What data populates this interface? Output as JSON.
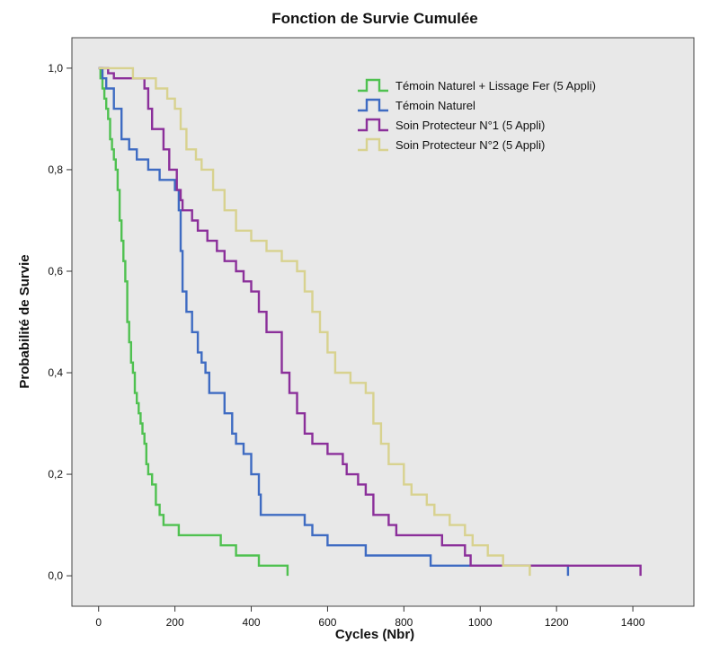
{
  "chart_data": {
    "type": "line",
    "step": true,
    "title": "Fonction de Survie Cumulée",
    "xlabel": "Cycles (Nbr)",
    "ylabel": "Probabilité de Survie",
    "xlim": [
      -70,
      1560
    ],
    "ylim": [
      -0.06,
      1.06
    ],
    "xticks": [
      0,
      200,
      400,
      600,
      800,
      1000,
      1200,
      1400
    ],
    "xtick_labels": [
      "0",
      "200",
      "400",
      "600",
      "800",
      "1000",
      "1200",
      "1400"
    ],
    "yticks": [
      0.0,
      0.2,
      0.4,
      0.6,
      0.8,
      1.0
    ],
    "ytick_labels": [
      "0,0",
      "0,2",
      "0,4",
      "0,6",
      "0,8",
      "1,0"
    ],
    "grid": false,
    "legend_position": "top-right",
    "background": "#e8e8e8",
    "series": [
      {
        "name": "Témoin Naturel + Lissage Fer (5 Appli)",
        "color": "#4fc150",
        "x": [
          0,
          5,
          10,
          15,
          20,
          25,
          30,
          35,
          40,
          45,
          50,
          55,
          60,
          65,
          70,
          75,
          80,
          85,
          90,
          95,
          100,
          105,
          110,
          115,
          120,
          125,
          130,
          140,
          150,
          160,
          170,
          190,
          210,
          320,
          360,
          420,
          470,
          495
        ],
        "y": [
          1.0,
          0.98,
          0.96,
          0.94,
          0.92,
          0.9,
          0.86,
          0.84,
          0.82,
          0.8,
          0.76,
          0.7,
          0.66,
          0.62,
          0.58,
          0.5,
          0.46,
          0.42,
          0.4,
          0.36,
          0.34,
          0.32,
          0.3,
          0.28,
          0.26,
          0.22,
          0.2,
          0.18,
          0.14,
          0.12,
          0.1,
          0.1,
          0.08,
          0.06,
          0.04,
          0.02,
          0.02,
          0.0
        ]
      },
      {
        "name": "Témoin Naturel",
        "color": "#3e6bc2",
        "x": [
          0,
          10,
          20,
          40,
          60,
          80,
          100,
          130,
          160,
          200,
          210,
          215,
          220,
          230,
          245,
          260,
          270,
          280,
          290,
          330,
          350,
          360,
          380,
          400,
          420,
          425,
          430,
          440,
          460,
          540,
          560,
          600,
          700,
          870,
          960,
          1230
        ],
        "y": [
          1.0,
          0.98,
          0.96,
          0.92,
          0.86,
          0.84,
          0.82,
          0.8,
          0.78,
          0.76,
          0.72,
          0.64,
          0.56,
          0.52,
          0.48,
          0.44,
          0.42,
          0.4,
          0.36,
          0.32,
          0.28,
          0.26,
          0.24,
          0.2,
          0.16,
          0.12,
          0.12,
          0.12,
          0.12,
          0.1,
          0.08,
          0.06,
          0.04,
          0.02,
          0.02,
          0.0
        ]
      },
      {
        "name": "Soin Protecteur N°1 (5 Appli)",
        "color": "#8b2f9a",
        "x": [
          0,
          25,
          40,
          110,
          120,
          130,
          140,
          170,
          185,
          205,
          215,
          220,
          245,
          260,
          285,
          310,
          330,
          360,
          380,
          400,
          420,
          440,
          480,
          500,
          520,
          540,
          560,
          600,
          640,
          650,
          680,
          700,
          720,
          760,
          780,
          900,
          960,
          975,
          1420
        ],
        "y": [
          1.0,
          0.99,
          0.98,
          0.98,
          0.96,
          0.92,
          0.88,
          0.84,
          0.8,
          0.76,
          0.74,
          0.72,
          0.7,
          0.68,
          0.66,
          0.64,
          0.62,
          0.6,
          0.58,
          0.56,
          0.52,
          0.48,
          0.4,
          0.36,
          0.32,
          0.28,
          0.26,
          0.24,
          0.22,
          0.2,
          0.18,
          0.16,
          0.12,
          0.1,
          0.08,
          0.06,
          0.04,
          0.02,
          0.0
        ]
      },
      {
        "name": "Soin Protecteur N°2 (5 Appli)",
        "color": "#d8d28f",
        "x": [
          0,
          90,
          110,
          130,
          150,
          180,
          200,
          215,
          230,
          255,
          270,
          300,
          330,
          360,
          400,
          440,
          480,
          520,
          540,
          560,
          580,
          600,
          620,
          660,
          700,
          720,
          740,
          760,
          800,
          820,
          860,
          880,
          920,
          960,
          980,
          1020,
          1060,
          1080,
          1130
        ],
        "y": [
          1.0,
          0.98,
          0.98,
          0.98,
          0.96,
          0.94,
          0.92,
          0.88,
          0.84,
          0.82,
          0.8,
          0.76,
          0.72,
          0.68,
          0.66,
          0.64,
          0.62,
          0.6,
          0.56,
          0.52,
          0.48,
          0.44,
          0.4,
          0.38,
          0.36,
          0.3,
          0.26,
          0.22,
          0.18,
          0.16,
          0.14,
          0.12,
          0.1,
          0.08,
          0.06,
          0.04,
          0.02,
          0.02,
          0.0
        ]
      }
    ]
  }
}
